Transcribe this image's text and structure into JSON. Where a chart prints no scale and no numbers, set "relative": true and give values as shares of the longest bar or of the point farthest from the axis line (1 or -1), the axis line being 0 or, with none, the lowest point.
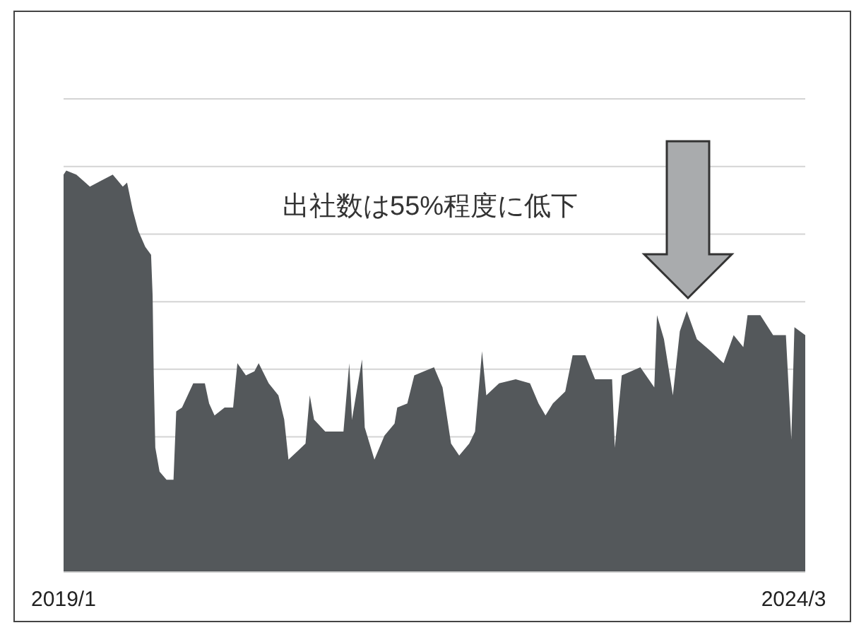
{
  "chart_data": {
    "type": "area",
    "relative": true,
    "grid": "y",
    "annotations": [
      "出社数は55%程度に低下"
    ],
    "xlim": [
      "2019-01-01",
      "2024-03-31"
    ],
    "xticks": [
      {
        "value": "2019-01-01",
        "label": "2019/1"
      },
      {
        "value": "2024-03-01",
        "label": "2024/3"
      }
    ],
    "series": [
      {
        "color": "#54585b",
        "x": [
          "2019-01-01",
          "2019-01-08",
          "2019-02-03",
          "2019-03-10",
          "2019-05-08",
          "2019-06-03",
          "2019-06-14",
          "2019-06-29",
          "2019-07-13",
          "2019-07-31",
          "2019-08-15",
          "2019-08-19",
          "2019-08-22",
          "2019-08-26",
          "2019-09-06",
          "2019-09-24",
          "2019-10-12",
          "2019-10-19",
          "2019-11-03",
          "2019-12-02",
          "2020-01-01",
          "2020-01-12",
          "2020-01-26",
          "2020-02-21",
          "2020-03-14",
          "2020-03-25",
          "2020-04-16",
          "2020-05-08",
          "2020-05-19",
          "2020-06-14",
          "2020-07-09",
          "2020-07-24",
          "2020-08-04",
          "2020-08-26",
          "2020-09-17",
          "2020-09-28",
          "2020-10-09",
          "2020-11-07",
          "2020-12-02",
          "2020-12-24",
          "2021-01-08",
          "2021-01-15",
          "2021-02-10",
          "2021-02-17",
          "2021-03-14",
          "2021-04-09",
          "2021-05-05",
          "2021-05-12",
          "2021-06-07",
          "2021-06-25",
          "2021-07-20",
          "2021-08-15",
          "2021-09-06",
          "2021-09-28",
          "2021-10-19",
          "2021-11-14",
          "2021-11-29",
          "2021-12-17",
          "2021-12-28",
          "2022-01-30",
          "2022-03-14",
          "2022-04-20",
          "2022-05-12",
          "2022-05-30",
          "2022-06-18",
          "2022-07-20",
          "2022-08-08",
          "2022-09-10",
          "2022-10-05",
          "2022-11-18",
          "2022-11-25",
          "2022-12-13",
          "2023-01-30",
          "2023-03-07",
          "2023-03-14",
          "2023-04-01",
          "2023-04-24",
          "2023-05-12",
          "2023-05-30",
          "2023-06-25",
          "2023-07-31",
          "2023-09-02",
          "2023-09-28",
          "2023-10-23",
          "2023-11-03",
          "2023-12-06",
          "2024-01-08",
          "2024-02-10",
          "2024-02-24",
          "2024-03-03",
          "2024-03-31"
        ],
        "values": [
          0.99,
          1.0,
          0.99,
          0.96,
          0.99,
          0.96,
          0.97,
          0.9,
          0.85,
          0.81,
          0.79,
          0.69,
          0.49,
          0.31,
          0.25,
          0.23,
          0.23,
          0.4,
          0.41,
          0.47,
          0.47,
          0.42,
          0.39,
          0.41,
          0.41,
          0.52,
          0.49,
          0.5,
          0.52,
          0.47,
          0.44,
          0.38,
          0.28,
          0.3,
          0.32,
          0.44,
          0.38,
          0.35,
          0.35,
          0.35,
          0.52,
          0.38,
          0.53,
          0.36,
          0.28,
          0.34,
          0.37,
          0.41,
          0.42,
          0.49,
          0.5,
          0.51,
          0.46,
          0.32,
          0.29,
          0.32,
          0.35,
          0.55,
          0.44,
          0.47,
          0.48,
          0.47,
          0.42,
          0.39,
          0.42,
          0.45,
          0.54,
          0.54,
          0.48,
          0.48,
          0.31,
          0.49,
          0.51,
          0.46,
          0.64,
          0.58,
          0.44,
          0.6,
          0.65,
          0.58,
          0.55,
          0.52,
          0.59,
          0.56,
          0.64,
          0.64,
          0.59,
          0.59,
          0.33,
          0.61,
          0.59
        ]
      }
    ]
  }
}
